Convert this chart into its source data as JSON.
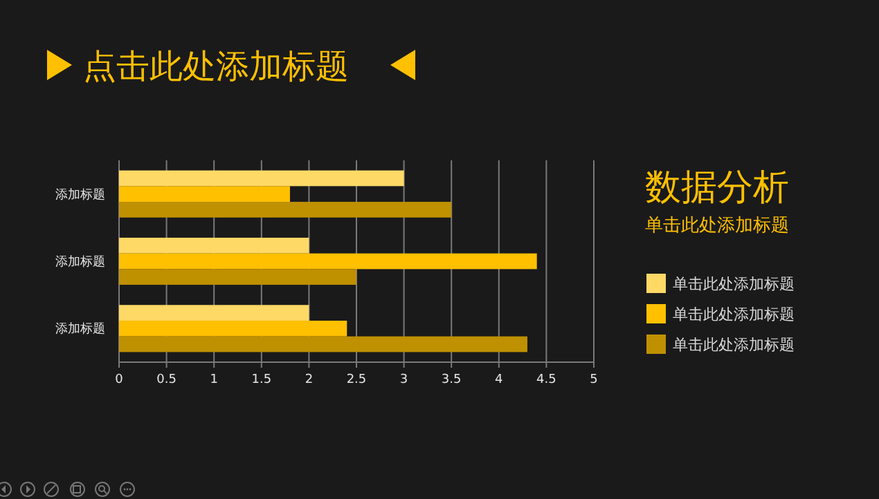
{
  "chart_data": {
    "type": "bar",
    "orientation": "horizontal",
    "title": "点击此处添加标题",
    "subtitle": "数据分析",
    "annotations": [
      "单击此处添加标题"
    ],
    "categories": [
      "添加标题",
      "添加标题",
      "添加标题"
    ],
    "series": [
      {
        "name": "单击此处添加标题",
        "color": "#ffd966",
        "values": [
          3,
          2,
          2
        ]
      },
      {
        "name": "单击此处添加标题",
        "color": "#ffc000",
        "values": [
          1.8,
          4.4,
          2.4
        ]
      },
      {
        "name": "单击此处添加标题",
        "color": "#bf9000",
        "values": [
          3.5,
          2.5,
          4.3
        ]
      }
    ],
    "xlim": [
      0,
      5
    ],
    "xticks": [
      0,
      0.5,
      1,
      1.5,
      2,
      2.5,
      3,
      3.5,
      4,
      4.5,
      5
    ],
    "grid": "x",
    "legend": "right"
  }
}
